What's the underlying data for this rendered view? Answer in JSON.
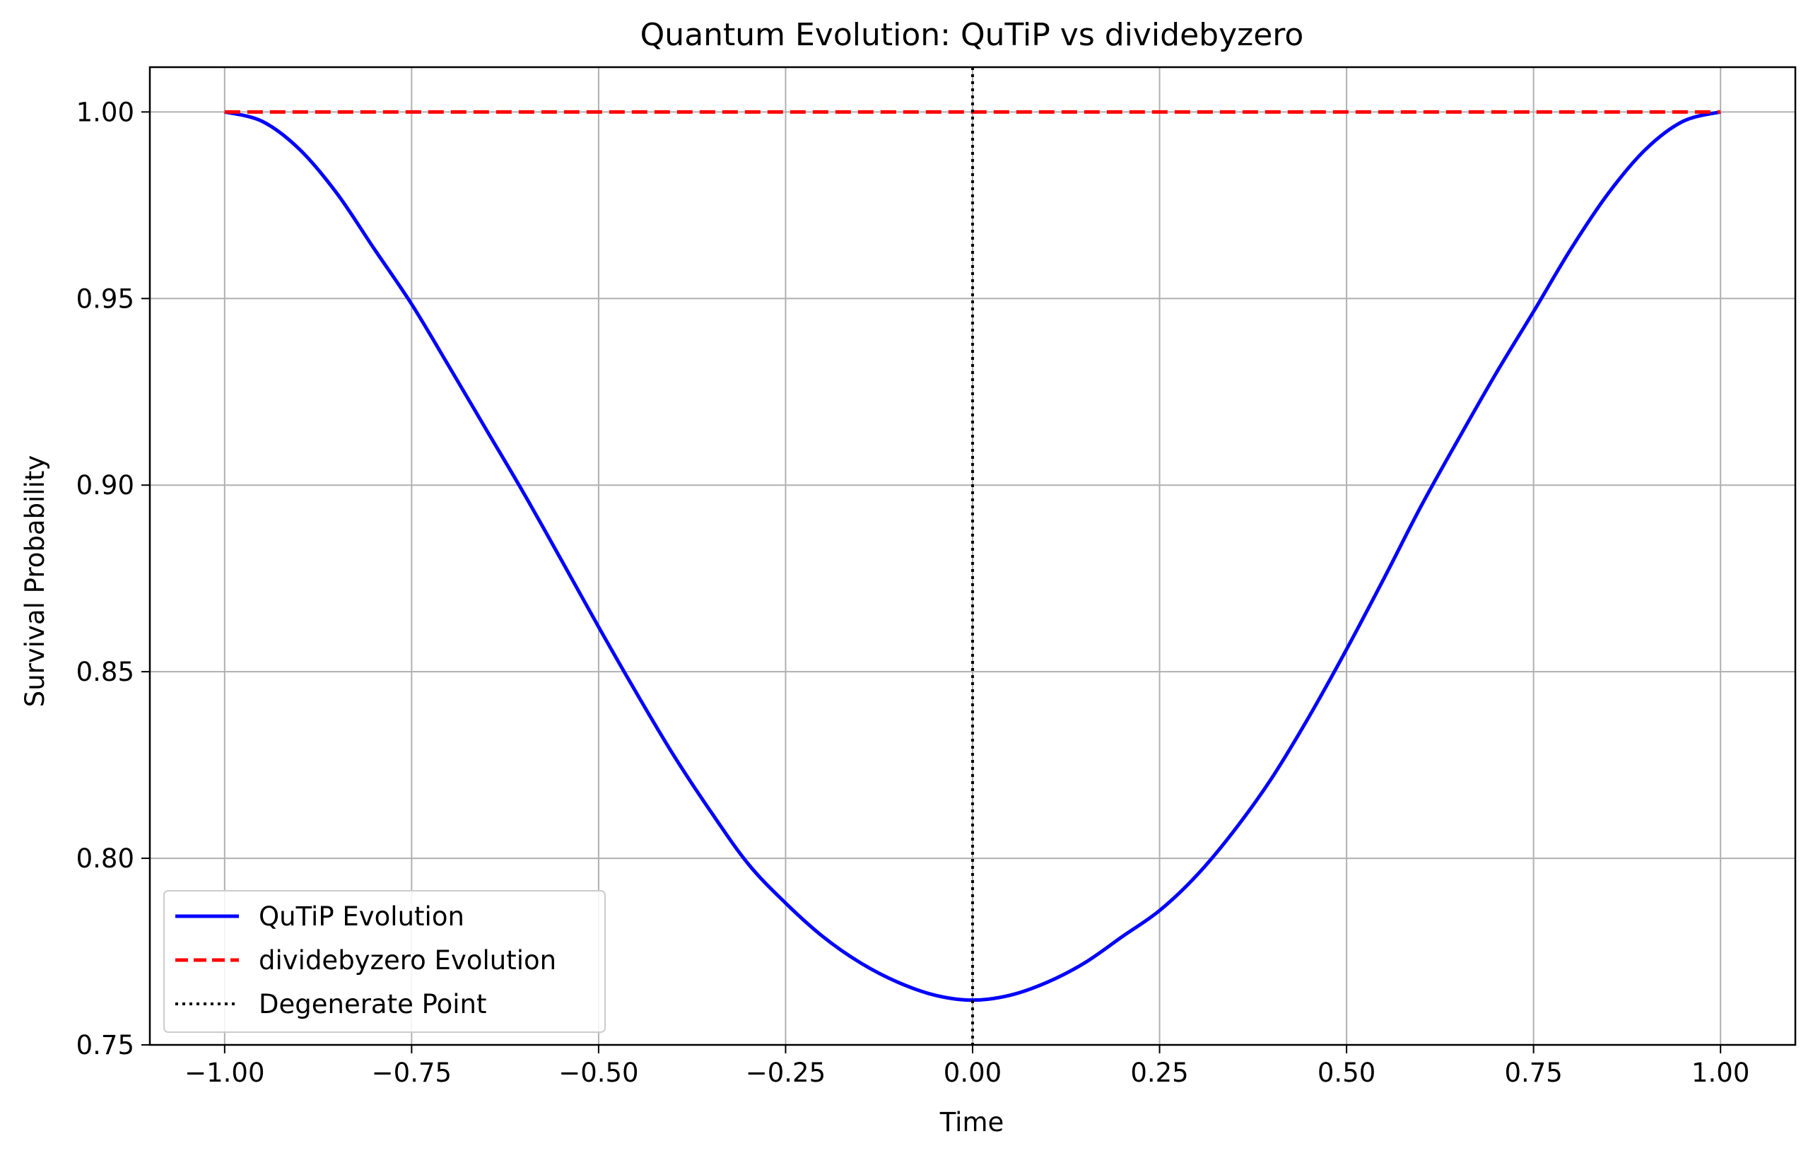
{
  "chart_data": {
    "type": "line",
    "title": "Quantum Evolution: QuTiP vs dividebyzero",
    "xlabel": "Time",
    "ylabel": "Survival Probability",
    "xlim": [
      -1.1,
      1.1
    ],
    "ylim": [
      0.75,
      1.012
    ],
    "xticks": [
      -1.0,
      -0.75,
      -0.5,
      -0.25,
      0.0,
      0.25,
      0.5,
      0.75,
      1.0
    ],
    "xtick_labels": [
      "−1.00",
      "−0.75",
      "−0.50",
      "−0.25",
      "0.00",
      "0.25",
      "0.50",
      "0.75",
      "1.00"
    ],
    "yticks": [
      0.75,
      0.8,
      0.85,
      0.9,
      0.95,
      1.0
    ],
    "ytick_labels": [
      "0.75",
      "0.80",
      "0.85",
      "0.90",
      "0.95",
      "1.00"
    ],
    "grid": true,
    "legend_position": "lower-left",
    "series": [
      {
        "name": "QuTiP Evolution",
        "color": "#0000ff",
        "style": "solid",
        "x": [
          -1.0,
          -0.95,
          -0.9,
          -0.85,
          -0.8,
          -0.75,
          -0.7,
          -0.65,
          -0.6,
          -0.55,
          -0.5,
          -0.45,
          -0.4,
          -0.35,
          -0.3,
          -0.25,
          -0.2,
          -0.15,
          -0.1,
          -0.05,
          0.0,
          0.05,
          0.1,
          0.15,
          0.2,
          0.25,
          0.3,
          0.35,
          0.4,
          0.45,
          0.5,
          0.55,
          0.6,
          0.65,
          0.7,
          0.75,
          0.8,
          0.85,
          0.9,
          0.95,
          1.0
        ],
        "y": [
          1.0,
          0.9975,
          0.99,
          0.9782,
          0.9633,
          0.9485,
          0.9318,
          0.9148,
          0.8978,
          0.88,
          0.862,
          0.8445,
          0.8277,
          0.8125,
          0.7985,
          0.788,
          0.779,
          0.772,
          0.7668,
          0.7633,
          0.762,
          0.7633,
          0.7668,
          0.772,
          0.779,
          0.786,
          0.7955,
          0.8075,
          0.8215,
          0.838,
          0.856,
          0.875,
          0.8945,
          0.9125,
          0.93,
          0.9465,
          0.9633,
          0.9782,
          0.99,
          0.9975,
          1.0
        ]
      },
      {
        "name": "dividebyzero Evolution",
        "color": "#ff0000",
        "style": "dashed",
        "x": [
          -1.0,
          1.0
        ],
        "y": [
          1.0,
          1.0
        ]
      },
      {
        "name": "Degenerate Point",
        "color": "#000000",
        "style": "dotted",
        "vline_x": 0.0
      }
    ]
  }
}
